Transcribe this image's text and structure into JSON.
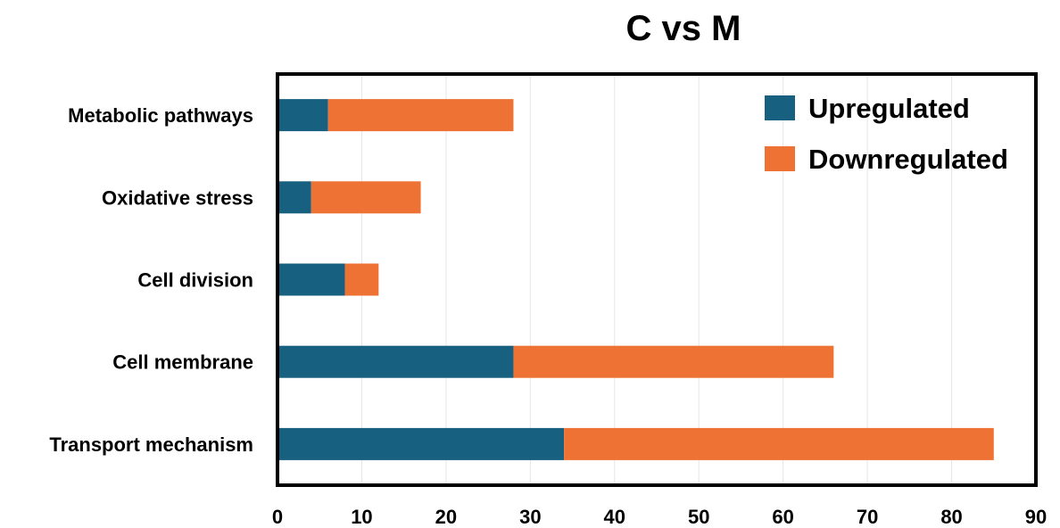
{
  "chart_data": {
    "type": "bar",
    "orientation": "horizontal",
    "stacked": true,
    "title": "C vs M",
    "xlabel": "",
    "ylabel": "",
    "categories": [
      "Metabolic pathways",
      "Oxidative stress",
      "Cell division",
      "Cell membrane",
      "Transport mechanism"
    ],
    "series": [
      {
        "name": "Upregulated",
        "color": "#17607f",
        "values": [
          6,
          4,
          8,
          28,
          34
        ]
      },
      {
        "name": "Downregulated",
        "color": "#ed7233",
        "values": [
          22,
          13,
          4,
          38,
          51
        ]
      }
    ],
    "xlim": [
      0,
      90
    ],
    "xticks": [
      "0",
      "10",
      "20",
      "30",
      "40",
      "50",
      "60",
      "70",
      "80",
      "90"
    ],
    "grid": true,
    "legend_position": "top-right"
  }
}
